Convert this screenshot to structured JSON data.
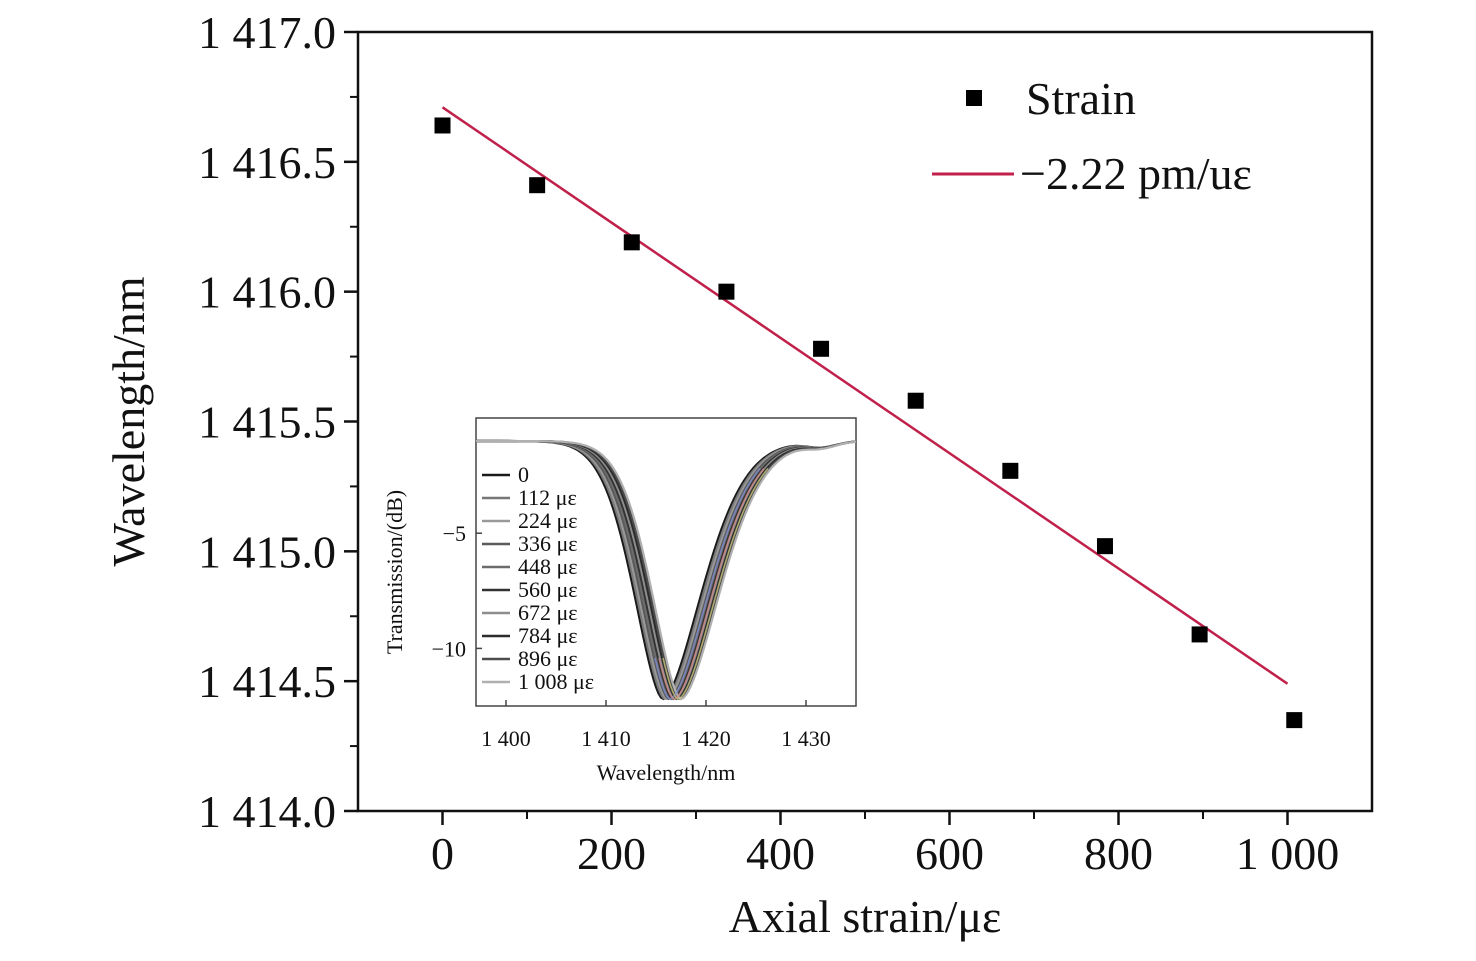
{
  "chart_data": [
    {
      "type": "scatter",
      "title": "",
      "xlabel": "Axial strain/με",
      "ylabel": "Wavelength/nm",
      "xlim": [
        -100,
        1100
      ],
      "ylim": [
        1414.0,
        1417.0
      ],
      "xticks": [
        0,
        200,
        400,
        600,
        800,
        1000
      ],
      "xtick_labels": [
        "0",
        "200",
        "400",
        "600",
        "800",
        "1 000"
      ],
      "yticks": [
        1414.0,
        1414.5,
        1415.0,
        1415.5,
        1416.0,
        1416.5,
        1417.0
      ],
      "ytick_labels": [
        "1 414.0",
        "1 414.5",
        "1 415.0",
        "1 415.5",
        "1 416.0",
        "1 416.5",
        "1 417.0"
      ],
      "grid": false,
      "legend_position": "top-right",
      "series": [
        {
          "name": "Strain",
          "kind": "scatter",
          "marker": "square",
          "color": "#000000",
          "x": [
            0,
            112,
            224,
            336,
            448,
            560,
            672,
            784,
            896,
            1008
          ],
          "y": [
            1416.64,
            1416.41,
            1416.19,
            1416.0,
            1415.78,
            1415.58,
            1415.31,
            1415.02,
            1414.68,
            1414.35
          ]
        },
        {
          "name": "−2.22 pm/uε",
          "kind": "line",
          "color": "#c0204a",
          "x": [
            0,
            1000
          ],
          "y": [
            1416.71,
            1414.49
          ]
        }
      ]
    },
    {
      "type": "line",
      "title": "",
      "xlabel": "Wavelength/nm",
      "ylabel": "Transmission/(dB)",
      "xlim": [
        1397,
        1435
      ],
      "ylim": [
        -12.5,
        0
      ],
      "xticks": [
        1400,
        1410,
        1420,
        1430
      ],
      "xtick_labels": [
        "1 400",
        "1 410",
        "1 420",
        "1 430"
      ],
      "yticks": [
        -5,
        -10
      ],
      "ytick_labels": [
        "−5",
        "−10"
      ],
      "grid": false,
      "legend_position": "left",
      "baseline_db": -1.0,
      "dip_depth_db": -12.2,
      "series": [
        {
          "name": "0",
          "center_nm": 1415.7,
          "color": "#1a1a1a"
        },
        {
          "name": "112 με",
          "center_nm": 1415.9,
          "color": "#777777"
        },
        {
          "name": "224 με",
          "center_nm": 1416.1,
          "color": "#999999"
        },
        {
          "name": "336 με",
          "center_nm": 1416.3,
          "color": "#5a5a5a"
        },
        {
          "name": "448 με",
          "center_nm": 1416.5,
          "color": "#6c6c6c"
        },
        {
          "name": "560 με",
          "center_nm": 1416.7,
          "color": "#333333"
        },
        {
          "name": "672 με",
          "center_nm": 1416.9,
          "color": "#8d8d8d"
        },
        {
          "name": "784 με",
          "center_nm": 1417.1,
          "color": "#2c2c2c"
        },
        {
          "name": "896 με",
          "center_nm": 1417.3,
          "color": "#4d4d4d"
        },
        {
          "name": "1 008 με",
          "center_nm": 1417.5,
          "color": "#b0b0b0"
        }
      ],
      "accent_colors": [
        "#7f8fd6",
        "#d68a8a",
        "#c8c37a"
      ]
    }
  ]
}
